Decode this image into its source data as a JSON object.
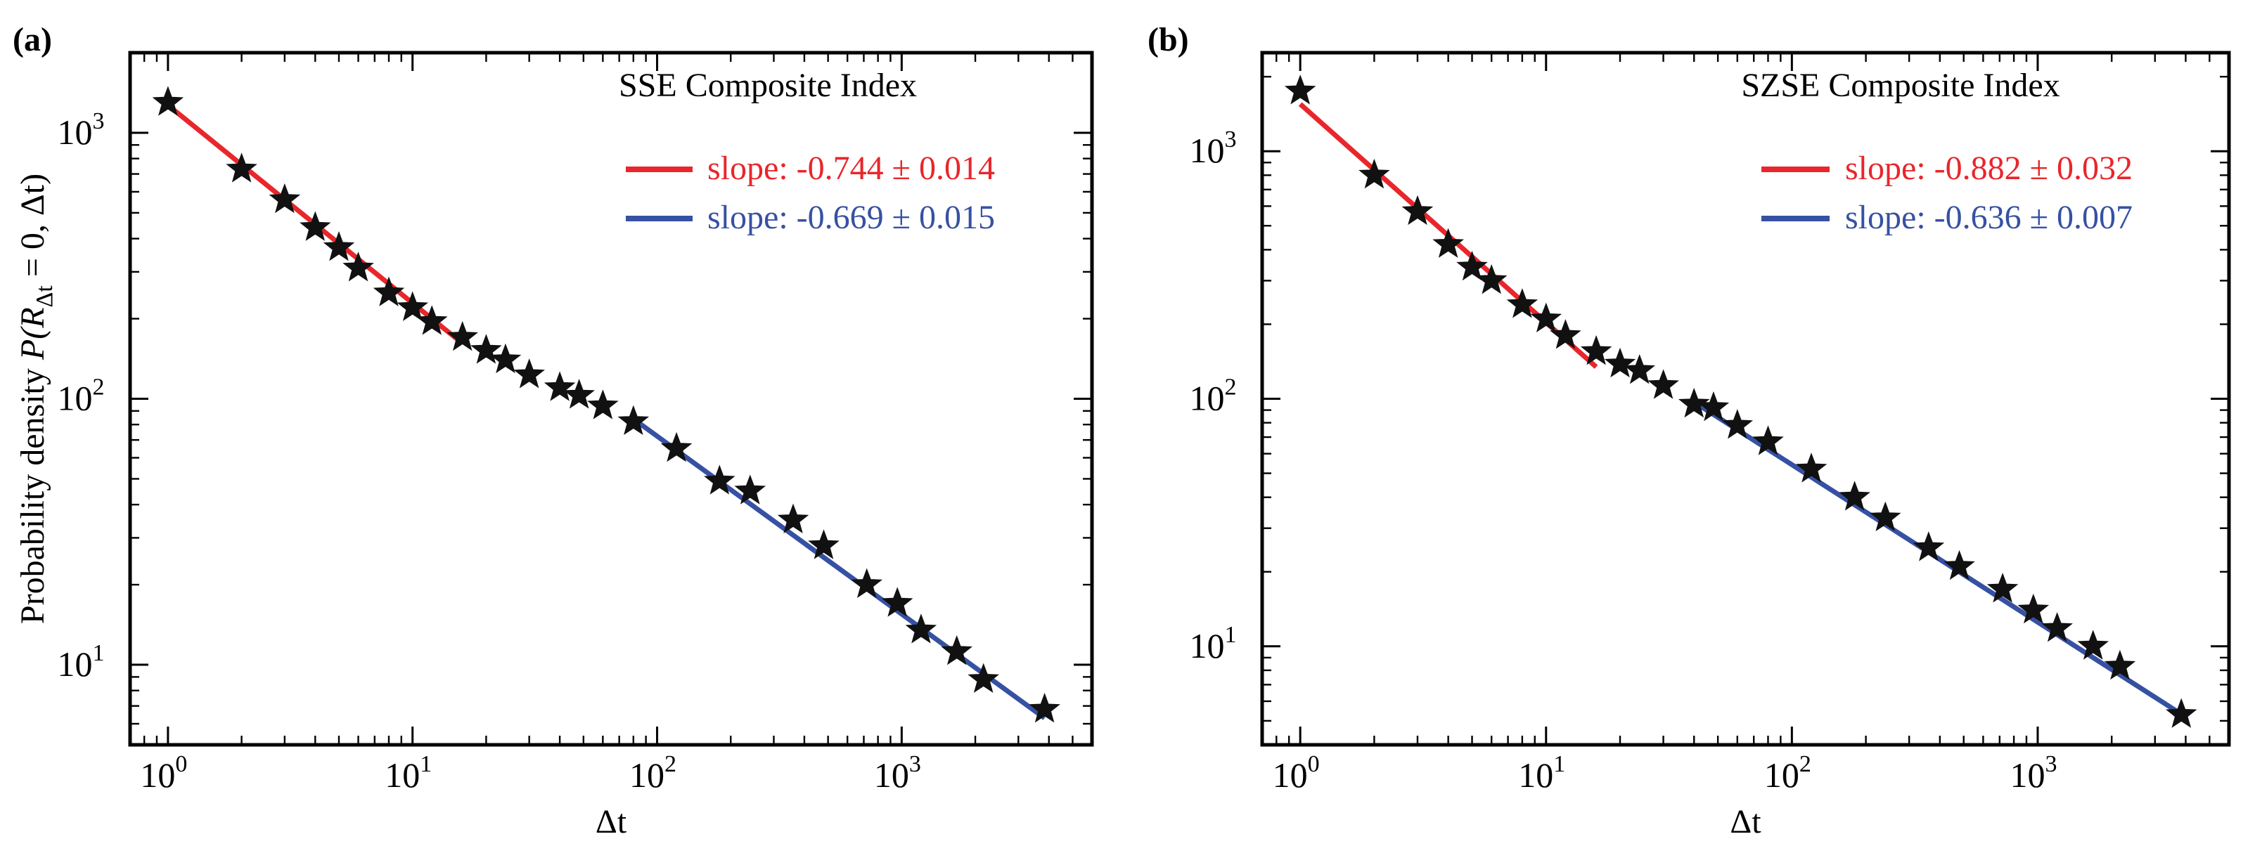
{
  "chart_data": [
    {
      "type": "scatter",
      "panel_label": "(a)",
      "title": "SSE Composite Index",
      "xlabel": "Δt",
      "ylabel_prefix": "Probability density ",
      "ylabel_math": "P(R",
      "ylabel_sub": "Δt",
      "ylabel_suffix": " = 0, Δt)",
      "xscale": "log",
      "yscale": "log",
      "xlim": [
        0.7,
        6000
      ],
      "ylim": [
        5.0,
        2000
      ],
      "xticks": [
        {
          "base": "10",
          "exp": "0",
          "value": 1
        },
        {
          "base": "10",
          "exp": "1",
          "value": 10
        },
        {
          "base": "10",
          "exp": "2",
          "value": 100
        },
        {
          "base": "10",
          "exp": "3",
          "value": 1000
        }
      ],
      "yticks": [
        {
          "base": "10",
          "exp": "1",
          "value": 10
        },
        {
          "base": "10",
          "exp": "2",
          "value": 100
        },
        {
          "base": "10",
          "exp": "3",
          "value": 1000
        }
      ],
      "points": {
        "x": [
          1,
          2,
          3,
          4,
          5,
          6,
          8,
          10,
          12,
          16,
          20,
          24,
          30,
          40,
          48,
          60,
          80,
          120,
          180,
          240,
          360,
          480,
          720,
          960,
          1200,
          1680,
          2160,
          3840
        ],
        "y": [
          1300,
          730,
          560,
          440,
          370,
          310,
          250,
          220,
          195,
          170,
          152,
          140,
          123,
          110,
          103,
          94,
          82,
          65,
          49,
          45,
          35,
          28,
          20,
          17,
          13.5,
          11.2,
          8.8,
          6.8
        ]
      },
      "fits": [
        {
          "color": "#e8262b",
          "legend": "slope: -0.744 ± 0.014",
          "x_range": [
            1,
            16
          ],
          "y_start": 1270,
          "slope": -0.744
        },
        {
          "color": "#3651a3",
          "legend": "slope: -0.669 ± 0.015",
          "x_range": [
            80,
            3840
          ],
          "y_start": 84,
          "slope": -0.669
        }
      ]
    },
    {
      "type": "scatter",
      "panel_label": "(b)",
      "title": "SZSE Composite Index",
      "xlabel": "Δt",
      "xscale": "log",
      "yscale": "log",
      "xlim": [
        0.7,
        6000
      ],
      "ylim": [
        4.0,
        2500
      ],
      "xticks": [
        {
          "base": "10",
          "exp": "0",
          "value": 1
        },
        {
          "base": "10",
          "exp": "1",
          "value": 10
        },
        {
          "base": "10",
          "exp": "2",
          "value": 100
        },
        {
          "base": "10",
          "exp": "3",
          "value": 1000
        }
      ],
      "yticks": [
        {
          "base": "10",
          "exp": "1",
          "value": 10
        },
        {
          "base": "10",
          "exp": "2",
          "value": 100
        },
        {
          "base": "10",
          "exp": "3",
          "value": 1000
        }
      ],
      "points": {
        "x": [
          1,
          2,
          3,
          4,
          5,
          6,
          8,
          10,
          12,
          16,
          20,
          24,
          30,
          40,
          48,
          60,
          80,
          120,
          180,
          240,
          360,
          480,
          720,
          960,
          1200,
          1680,
          2160,
          3840
        ],
        "y": [
          1750,
          800,
          570,
          420,
          340,
          300,
          240,
          210,
          180,
          155,
          138,
          130,
          113,
          95,
          92,
          78,
          67,
          52,
          40,
          33,
          25,
          21,
          17,
          14,
          11.8,
          10,
          8.3,
          5.3
        ]
      },
      "fits": [
        {
          "color": "#e8262b",
          "legend": "slope: -0.882 ± 0.032",
          "x_range": [
            1,
            16
          ],
          "y_start": 1550,
          "slope": -0.882
        },
        {
          "color": "#3651a3",
          "legend": "slope: -0.636 ± 0.007",
          "x_range": [
            40,
            3840
          ],
          "y_start": 97,
          "slope": -0.636
        }
      ]
    }
  ]
}
